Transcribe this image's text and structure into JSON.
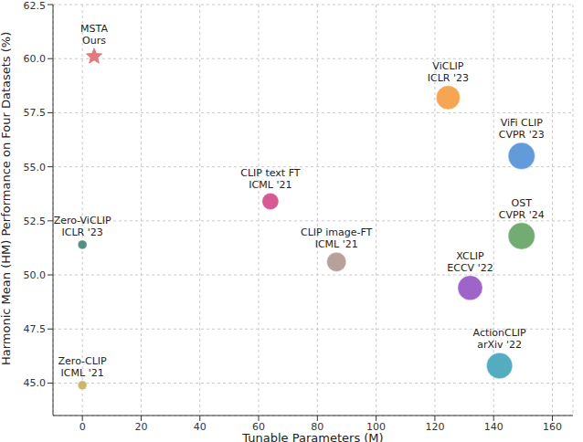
{
  "chart_data": {
    "type": "scatter",
    "x_label": "Tunable Parameters (M)",
    "y_label": "Harmonic Mean (HM) Performance on Four Datasets (%)",
    "xlim": [
      -10,
      167
    ],
    "xticks": [
      0,
      20,
      40,
      60,
      80,
      100,
      120,
      140,
      160
    ],
    "ylim": [
      43.5,
      62.5
    ],
    "yticks": [
      {
        "value": 45,
        "label": "45.0"
      },
      47.5,
      {
        "value": 50,
        "label": "50.0"
      },
      52.5,
      {
        "value": 55,
        "label": "55.0"
      },
      57.5,
      {
        "value": 60,
        "label": "60.0"
      },
      62.5
    ],
    "grid": true,
    "points": [
      {
        "name": "MSTA",
        "venue": "Ours",
        "x": 4,
        "y": 60.1,
        "color": "#e07b7b",
        "marker": "star"
      },
      {
        "name": "ViCLIP",
        "venue": "ICLR '23",
        "x": 124.5,
        "y": 58.2,
        "color": "#f5a04a",
        "marker": "circle"
      },
      {
        "name": "ViFi CLIP",
        "venue": "CVPR '23",
        "x": 149.5,
        "y": 55.5,
        "color": "#5b95d8",
        "marker": "circle"
      },
      {
        "name": "CLIP text FT",
        "venue": "ICML '21",
        "x": 64,
        "y": 53.4,
        "color": "#d4528c",
        "marker": "circle"
      },
      {
        "name": "Zero-ViCLIP",
        "venue": "ICLR '23",
        "x": 0,
        "y": 51.4,
        "color": "#4e8a7c",
        "marker": "circle"
      },
      {
        "name": "OST",
        "venue": "CVPR '24",
        "x": 149.5,
        "y": 51.8,
        "color": "#6aa86c",
        "marker": "circle"
      },
      {
        "name": "CLIP image-FT",
        "venue": "ICML '21",
        "x": 86.5,
        "y": 50.6,
        "color": "#b39c94",
        "marker": "circle"
      },
      {
        "name": "XCLIP",
        "venue": "ECCV '22",
        "x": 132,
        "y": 49.4,
        "color": "#9a5cc4",
        "marker": "circle"
      },
      {
        "name": "ActionCLIP",
        "venue": "arXiv '22",
        "x": 142,
        "y": 45.8,
        "color": "#4aa8bc",
        "marker": "circle"
      },
      {
        "name": "Zero-CLIP",
        "venue": "ICML '21",
        "x": 0,
        "y": 44.9,
        "color": "#c8b464",
        "marker": "circle"
      }
    ]
  }
}
